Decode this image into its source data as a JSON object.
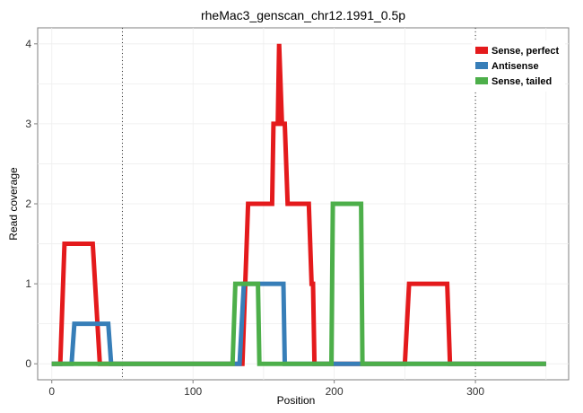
{
  "chart_data": {
    "type": "line",
    "title": "rheMac3_genscan_chr12.1991_0.5p",
    "xlabel": "Position",
    "ylabel": "Read coverage",
    "xlim": [
      -10,
      366
    ],
    "ylim": [
      -0.2,
      4.2
    ],
    "x_ticks": [
      0,
      100,
      200,
      300
    ],
    "y_ticks": [
      0,
      1,
      2,
      3,
      4
    ],
    "grid": true,
    "legend_position": "top-right",
    "vlines": [
      50,
      300
    ],
    "series": [
      {
        "name": "Sense, perfect",
        "color": "#e41a1c",
        "points": [
          [
            0,
            0
          ],
          [
            6,
            0
          ],
          [
            9,
            1.5
          ],
          [
            29,
            1.5
          ],
          [
            34,
            0
          ],
          [
            135,
            0
          ],
          [
            139,
            2
          ],
          [
            156,
            2
          ],
          [
            157,
            3
          ],
          [
            160,
            3
          ],
          [
            161,
            4
          ],
          [
            163,
            3
          ],
          [
            165,
            3
          ],
          [
            167,
            2
          ],
          [
            182,
            2
          ],
          [
            184,
            1
          ],
          [
            185,
            1
          ],
          [
            186,
            0
          ],
          [
            250,
            0
          ],
          [
            253,
            1
          ],
          [
            280,
            1
          ],
          [
            282,
            0
          ],
          [
            350,
            0
          ]
        ]
      },
      {
        "name": "Antisense",
        "color": "#377eb8",
        "points": [
          [
            0,
            0
          ],
          [
            14,
            0
          ],
          [
            16,
            0.5
          ],
          [
            40,
            0.5
          ],
          [
            42,
            0
          ],
          [
            133,
            0
          ],
          [
            136,
            1
          ],
          [
            164,
            1
          ],
          [
            165,
            0
          ],
          [
            350,
            0
          ]
        ]
      },
      {
        "name": "Sense, tailed",
        "color": "#4daf4a",
        "points": [
          [
            0,
            0
          ],
          [
            128,
            0
          ],
          [
            130,
            1
          ],
          [
            146,
            1
          ],
          [
            147,
            0
          ],
          [
            198,
            0
          ],
          [
            199,
            2
          ],
          [
            219,
            2
          ],
          [
            220,
            0
          ],
          [
            350,
            0
          ]
        ]
      }
    ]
  }
}
